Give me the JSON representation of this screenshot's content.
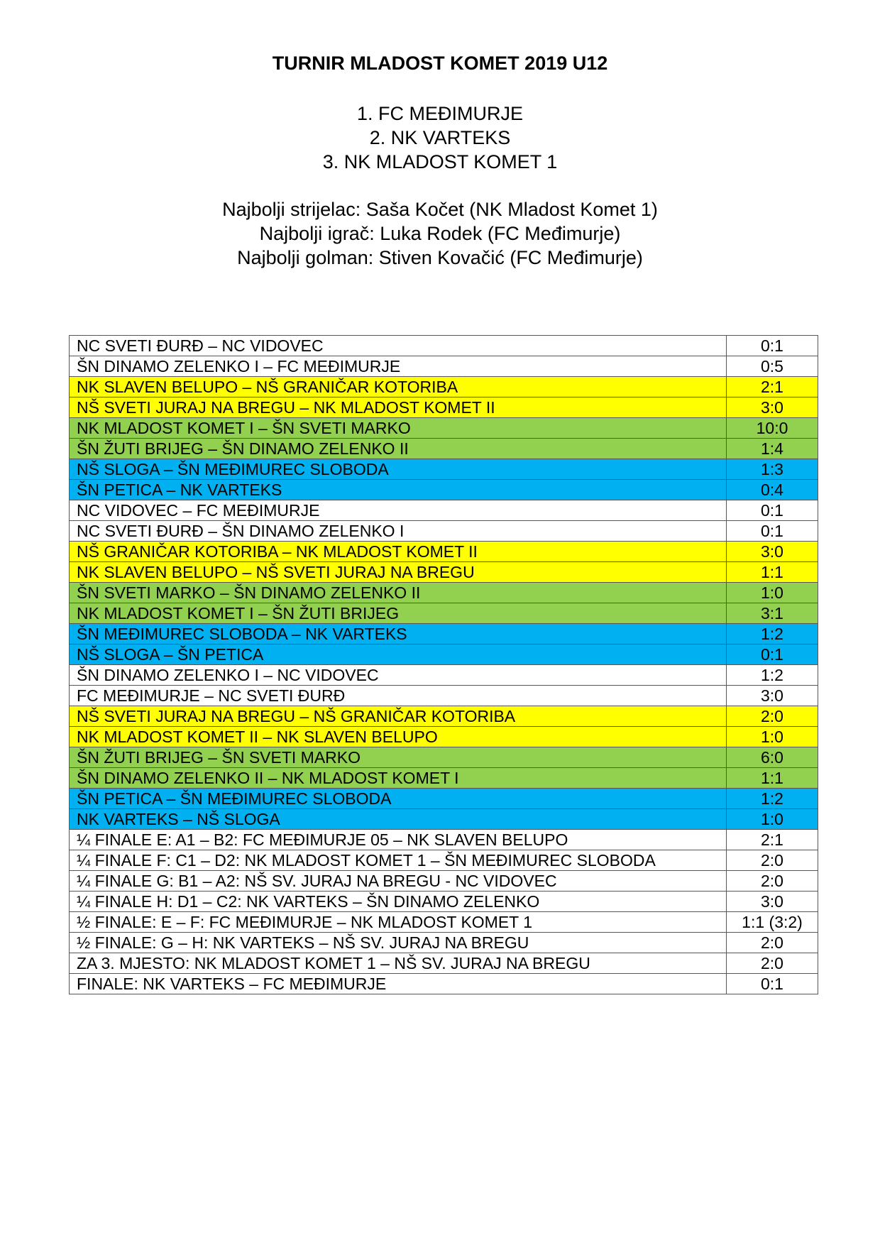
{
  "title": "TURNIR MLADOST KOMET 2019 U12",
  "rankings": [
    "1. FC MEĐIMURJE",
    "2. NK VARTEKS",
    "3. NK MLADOST KOMET 1"
  ],
  "awards": [
    "Najbolji strijelac: Saša Kočet (NK Mladost Komet 1)",
    "Najbolji igrač: Luka Rodek (FC Međimurje)",
    "Najbolji golman: Stiven Kovačić (FC Međimurje)"
  ],
  "colors": {
    "white": "#FFFFFF",
    "yellow": "#FFFF00",
    "green": "#92D050",
    "blue": "#00B0F0"
  },
  "matches": [
    {
      "match": "NC SVETI ĐURĐ – NC VIDOVEC",
      "score": "0:1",
      "color": "white"
    },
    {
      "match": "ŠN DINAMO ZELENKO I – FC MEĐIMURJE",
      "score": "0:5",
      "color": "white"
    },
    {
      "match": "NK SLAVEN BELUPO – NŠ GRANIČAR KOTORIBA",
      "score": "2:1",
      "color": "yellow"
    },
    {
      "match": "NŠ SVETI JURAJ NA BREGU – NK MLADOST KOMET II",
      "score": "3:0",
      "color": "yellow"
    },
    {
      "match": "NK MLADOST KOMET I – ŠN SVETI MARKO",
      "score": "10:0",
      "color": "green"
    },
    {
      "match": "ŠN ŽUTI BRIJEG – ŠN DINAMO ZELENKO II",
      "score": "1:4",
      "color": "green"
    },
    {
      "match": "NŠ SLOGA – ŠN  MEĐIMUREC SLOBODA",
      "score": "1:3",
      "color": "blue"
    },
    {
      "match": "ŠN PETICA – NK VARTEKS",
      "score": "0:4",
      "color": "blue"
    },
    {
      "match": "NC VIDOVEC – FC MEĐIMURJE",
      "score": "0:1",
      "color": "white"
    },
    {
      "match": "NC SVETI ĐURĐ – ŠN DINAMO ZELENKO I",
      "score": "0:1",
      "color": "white"
    },
    {
      "match": "NŠ GRANIČAR KOTORIBA – NK MLADOST KOMET II",
      "score": "3:0",
      "color": "yellow"
    },
    {
      "match": "NK SLAVEN BELUPO – NŠ SVETI JURAJ NA BREGU",
      "score": "1:1",
      "color": "yellow"
    },
    {
      "match": "ŠN SVETI MARKO – ŠN DINAMO ZELENKO II",
      "score": "1:0",
      "color": "green"
    },
    {
      "match": "NK MLADOST KOMET I – ŠN ŽUTI BRIJEG",
      "score": "3:1",
      "color": "green"
    },
    {
      "match": "ŠN MEĐIMUREC SLOBODA – NK VARTEKS",
      "score": "1:2",
      "color": "blue"
    },
    {
      "match": "NŠ SLOGA – ŠN PETICA",
      "score": "0:1",
      "color": "blue"
    },
    {
      "match": "ŠN DINAMO ZELENKO I – NC VIDOVEC",
      "score": "1:2",
      "color": "white"
    },
    {
      "match": "FC MEĐIMURJE – NC SVETI ĐURĐ",
      "score": "3:0",
      "color": "white"
    },
    {
      "match": "NŠ SVETI JURAJ NA BREGU – NŠ GRANIČAR KOTORIBA",
      "score": "2:0",
      "color": "yellow"
    },
    {
      "match": "NK MLADOST KOMET II – NK SLAVEN BELUPO",
      "score": "1:0",
      "color": "yellow"
    },
    {
      "match": "ŠN ŽUTI BRIJEG – ŠN SVETI MARKO",
      "score": "6:0",
      "color": "green"
    },
    {
      "match": "ŠN DINAMO ZELENKO II – NK MLADOST KOMET I",
      "score": "1:1",
      "color": "green"
    },
    {
      "match": "ŠN PETICA – ŠN MEĐIMUREC SLOBODA",
      "score": "1:2",
      "color": "blue"
    },
    {
      "match": "NK VARTEKS – NŠ SLOGA",
      "score": "1:0",
      "color": "blue"
    },
    {
      "match": "¼ FINALE E: A1 – B2: FC MEĐIMURJE 05 – NK SLAVEN BELUPO",
      "score": "2:1",
      "color": "white"
    },
    {
      "match": "¼ FINALE F: C1 – D2: NK MLADOST KOMET 1 – ŠN MEĐIMUREC SLOBODA",
      "score": "2:0",
      "color": "white"
    },
    {
      "match": "¼ FINALE G: B1 – A2: NŠ SV. JURAJ NA BREGU - NC VIDOVEC",
      "score": "2:0",
      "color": "white"
    },
    {
      "match": "¼ FINALE H: D1 – C2: NK VARTEKS – ŠN DINAMO ZELENKO",
      "score": "3:0",
      "color": "white"
    },
    {
      "match": "½ FINALE: E – F: FC MEĐIMURJE – NK MLADOST KOMET 1",
      "score": "1:1 (3:2)",
      "color": "white"
    },
    {
      "match": "½ FINALE: G – H: NK VARTEKS – NŠ SV. JURAJ NA BREGU",
      "score": "2:0",
      "color": "white"
    },
    {
      "match": "ZA 3. MJESTO: NK MLADOST KOMET 1 – NŠ SV. JURAJ NA BREGU",
      "score": "2:0",
      "color": "white"
    },
    {
      "match": "FINALE: NK VARTEKS – FC MEĐIMURJE",
      "score": "0:1",
      "color": "white"
    }
  ]
}
